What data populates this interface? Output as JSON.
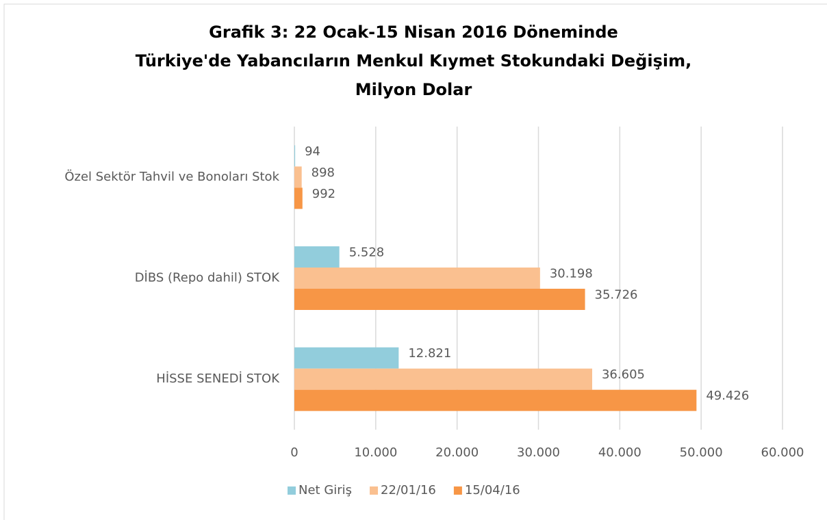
{
  "chart_data": {
    "type": "hbar",
    "title": [
      "Grafik 3: 22 Ocak-15 Nisan 2016 Döneminde",
      "Türkiye'de Yabancıların Menkul Kıymet Stokundaki Değişim,",
      "Milyon Dolar"
    ],
    "categories": [
      "Özel Sektör Tahvil ve Bonoları Stok",
      "DİBS (Repo dahil)  STOK",
      "HİSSE SENEDİ STOK"
    ],
    "series": [
      {
        "name": "Net Giriş",
        "color": "#92cddc",
        "values": [
          94,
          5528,
          12821
        ],
        "value_labels": [
          "94",
          "5.528",
          "12.821"
        ]
      },
      {
        "name": "22/01/16",
        "color": "#fac090",
        "values": [
          898,
          30198,
          36605
        ],
        "value_labels": [
          "898",
          "30.198",
          "36.605"
        ]
      },
      {
        "name": "15/04/16",
        "color": "#f79646",
        "values": [
          992,
          35726,
          49426
        ],
        "value_labels": [
          "992",
          "35.726",
          "49.426"
        ]
      }
    ],
    "xlim": [
      0,
      60000
    ],
    "xticks": [
      0,
      {
        "value": 10000,
        "label": "10.000"
      },
      {
        "value": 20000,
        "label": "20.000"
      },
      {
        "value": 30000,
        "label": "30.000"
      },
      {
        "value": 40000,
        "label": "40.000"
      },
      {
        "value": 50000,
        "label": "50.000"
      },
      {
        "value": 60000,
        "label": "60.000"
      }
    ],
    "grid": true,
    "legend": "bottom"
  }
}
